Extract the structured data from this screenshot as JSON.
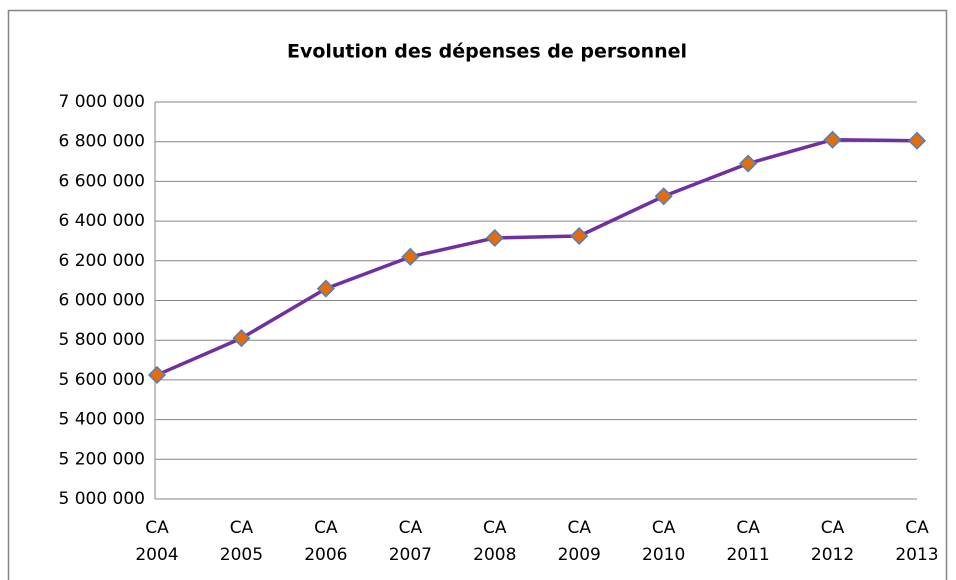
{
  "chart_data": {
    "type": "line",
    "title": "Evolution des dépenses de personnel",
    "categories": [
      "CA 2004",
      "CA 2005",
      "CA 2006",
      "CA 2007",
      "CA 2008",
      "CA 2009",
      "CA 2010",
      "CA 2011",
      "CA 2012",
      "CA 2013"
    ],
    "series": [
      {
        "color": "#7030a0",
        "marker_color": "#e46c0a",
        "marker_edge": "#4f81bd",
        "values": [
          5625000,
          5810000,
          6060000,
          6220000,
          6315000,
          6325000,
          6525000,
          6690000,
          6810000,
          6805000
        ]
      }
    ],
    "ylim": [
      5000000,
      7000000
    ],
    "yticks": [
      {
        "value": 5000000,
        "label": "5 000 000"
      },
      {
        "value": 5200000,
        "label": "5 200 000"
      },
      {
        "value": 5400000,
        "label": "5 400 000"
      },
      {
        "value": 5600000,
        "label": "5 600 000"
      },
      {
        "value": 5800000,
        "label": "5 800 000"
      },
      {
        "value": 6000000,
        "label": "6 000 000"
      },
      {
        "value": 6200000,
        "label": "6 200 000"
      },
      {
        "value": 6400000,
        "label": "6 400 000"
      },
      {
        "value": 6600000,
        "label": "6 600 000"
      },
      {
        "value": 6800000,
        "label": "6 800 000"
      },
      {
        "value": 7000000,
        "label": "7 000 000"
      }
    ],
    "grid": true
  }
}
